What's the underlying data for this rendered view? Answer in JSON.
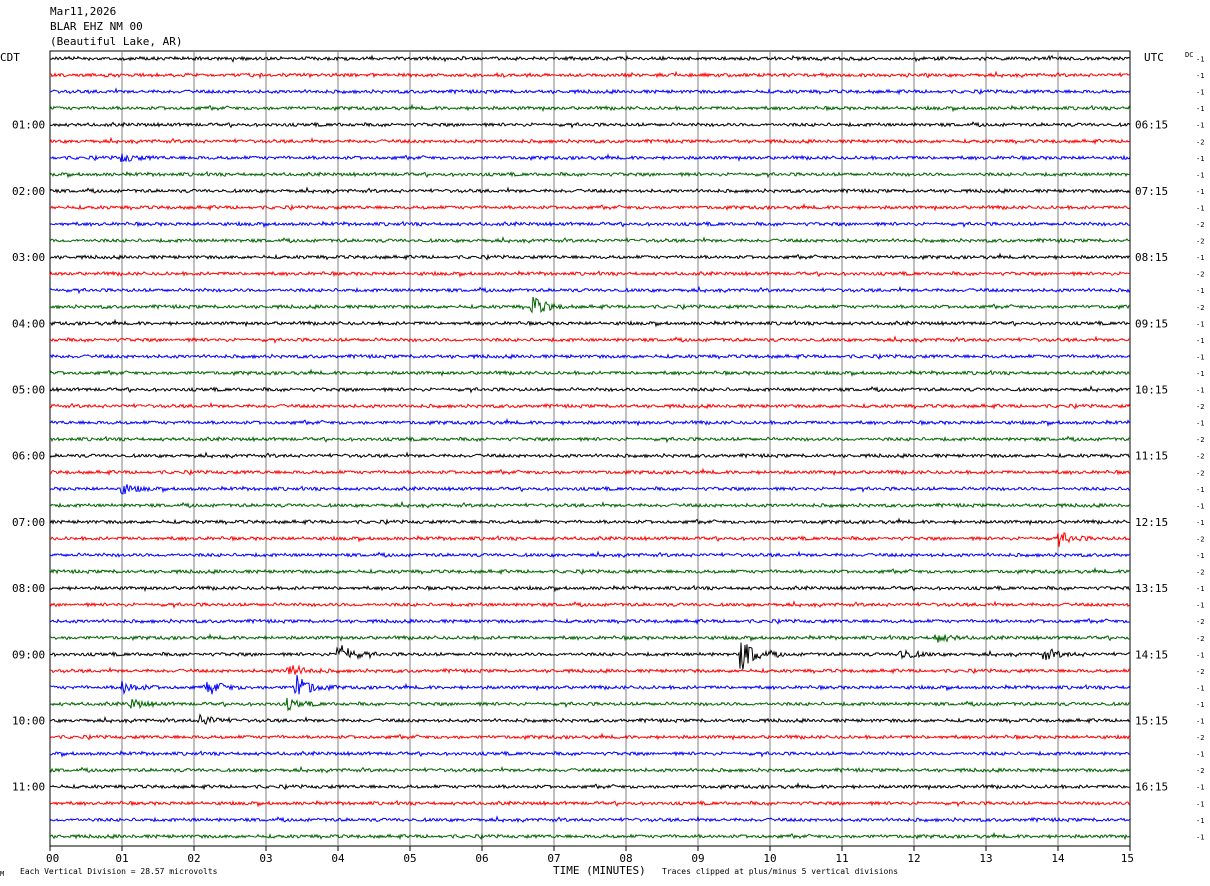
{
  "header": {
    "date": "Mar11,2026",
    "station": "BLAR EHZ NM 00",
    "location": "(Beautiful Lake, AR)"
  },
  "left_timezone": "CDT",
  "right_timezone": "UTC",
  "dc_label": "DC",
  "footer": {
    "corner_mark": "M",
    "scale_text": "Each Vertical Division =   28.57 microvolts",
    "xlabel": "TIME (MINUTES)",
    "clip_text": "Traces clipped at plus/minus 5 vertical divisions"
  },
  "colors": {
    "trace_cycle": [
      "#000000",
      "#ff0000",
      "#0000ff",
      "#006400"
    ],
    "grid": "#7f7f7f",
    "frame": "#000000",
    "text": "#000000"
  },
  "chart_data": {
    "type": "line",
    "title": "BLAR EHZ NM 00",
    "xlabel": "TIME (MINUTES)",
    "ylabel": "",
    "xlim": [
      0,
      15
    ],
    "x_ticks": [
      "00",
      "01",
      "02",
      "03",
      "04",
      "05",
      "06",
      "07",
      "08",
      "09",
      "10",
      "11",
      "12",
      "13",
      "14",
      "15"
    ],
    "row_minutes": 15,
    "row_count": 48,
    "left_hour_labels": [
      {
        "row": 4,
        "label": "01:00"
      },
      {
        "row": 8,
        "label": "02:00"
      },
      {
        "row": 12,
        "label": "03:00"
      },
      {
        "row": 16,
        "label": "04:00"
      },
      {
        "row": 20,
        "label": "05:00"
      },
      {
        "row": 24,
        "label": "06:00"
      },
      {
        "row": 28,
        "label": "07:00"
      },
      {
        "row": 32,
        "label": "08:00"
      },
      {
        "row": 36,
        "label": "09:00"
      },
      {
        "row": 40,
        "label": "10:00"
      },
      {
        "row": 44,
        "label": "11:00"
      }
    ],
    "right_hour_labels": [
      {
        "row": 4,
        "label": "06:15"
      },
      {
        "row": 8,
        "label": "07:15"
      },
      {
        "row": 12,
        "label": "08:15"
      },
      {
        "row": 16,
        "label": "09:15"
      },
      {
        "row": 20,
        "label": "10:15"
      },
      {
        "row": 24,
        "label": "11:15"
      },
      {
        "row": 28,
        "label": "12:15"
      },
      {
        "row": 32,
        "label": "13:15"
      },
      {
        "row": 36,
        "label": "14:15"
      },
      {
        "row": 40,
        "label": "15:15"
      },
      {
        "row": 44,
        "label": "16:15"
      }
    ],
    "dc_offsets": [
      "-1",
      "-1",
      "-1",
      "-1",
      "-1",
      "-2",
      "-1",
      "-1",
      "-1",
      "-1",
      "-2",
      "-2",
      "-1",
      "-2",
      "-1",
      "-2",
      "-1",
      "-1",
      "-1",
      "-1",
      "-1",
      "-2",
      "-1",
      "-2",
      "-2",
      "-2",
      "-1",
      "-1",
      "-1",
      "-2",
      "-1",
      "-2",
      "-1",
      "-1",
      "-2",
      "-2",
      "-1",
      "-2",
      "-1",
      "-1",
      "-1",
      "-2",
      "-1",
      "-2",
      "-1",
      "-1",
      "-1",
      "-1"
    ],
    "scale_microvolts_per_division": 28.57,
    "clip_divisions": 5,
    "events": [
      {
        "row": 15,
        "minute": 6.7,
        "amp": 10
      },
      {
        "row": 29,
        "minute": 14.0,
        "amp": 7
      },
      {
        "row": 35,
        "minute": 12.3,
        "amp": 5
      },
      {
        "row": 36,
        "minute": 4.0,
        "amp": 12
      },
      {
        "row": 36,
        "minute": 9.6,
        "amp": 16
      },
      {
        "row": 36,
        "minute": 11.8,
        "amp": 6
      },
      {
        "row": 36,
        "minute": 13.8,
        "amp": 6
      },
      {
        "row": 37,
        "minute": 3.3,
        "amp": 8
      },
      {
        "row": 38,
        "minute": 1.0,
        "amp": 6
      },
      {
        "row": 38,
        "minute": 2.2,
        "amp": 7
      },
      {
        "row": 38,
        "minute": 3.4,
        "amp": 14
      },
      {
        "row": 39,
        "minute": 1.1,
        "amp": 5
      },
      {
        "row": 39,
        "minute": 3.3,
        "amp": 5
      },
      {
        "row": 40,
        "minute": 2.1,
        "amp": 6
      },
      {
        "row": 6,
        "minute": 1.0,
        "amp": 4
      },
      {
        "row": 26,
        "minute": 1.0,
        "amp": 5
      }
    ]
  }
}
